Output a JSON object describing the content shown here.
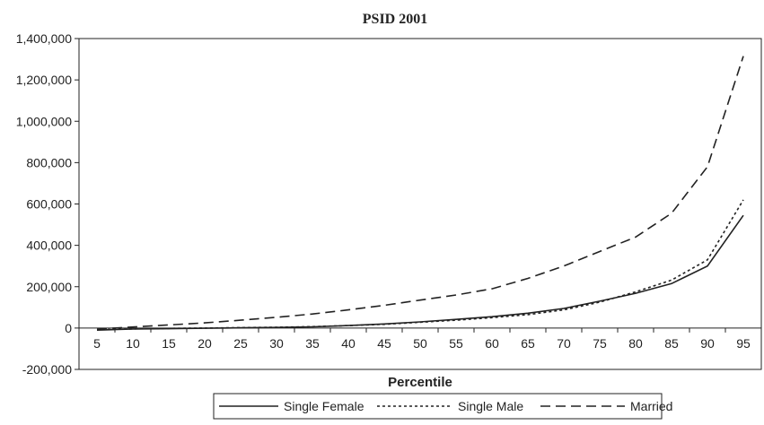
{
  "chart_data": {
    "type": "line",
    "title": "PSID 2001",
    "xlabel": "Percentile",
    "ylabel": "",
    "x": [
      5,
      10,
      15,
      20,
      25,
      30,
      35,
      40,
      45,
      50,
      55,
      60,
      65,
      70,
      75,
      80,
      85,
      90,
      95
    ],
    "ylim": [
      -200000,
      1400000
    ],
    "yticks": [
      {
        "value": -200000,
        "label": "-200,000"
      },
      {
        "value": 0,
        "label": "0"
      },
      {
        "value": 200000,
        "label": "200,000"
      },
      {
        "value": 400000,
        "label": "400,000"
      },
      {
        "value": 600000,
        "label": "600,000"
      },
      {
        "value": 800000,
        "label": "800,000"
      },
      {
        "value": 1000000,
        "label": "1,000,000"
      },
      {
        "value": 1200000,
        "label": "1,200,000"
      },
      {
        "value": 1400000,
        "label": "1,400,000"
      }
    ],
    "xticks": [
      "5",
      "10",
      "15",
      "20",
      "25",
      "30",
      "35",
      "40",
      "45",
      "50",
      "55",
      "60",
      "65",
      "70",
      "75",
      "80",
      "85",
      "90",
      "95"
    ],
    "grid": false,
    "legend_position": "bottom",
    "series": [
      {
        "name": "Single Female",
        "style": "solid",
        "color": "#222222",
        "values": [
          -10000,
          -5000,
          -3000,
          -1000,
          1000,
          3000,
          6000,
          12000,
          20000,
          30000,
          42000,
          55000,
          72000,
          95000,
          130000,
          168000,
          215000,
          300000,
          545000
        ]
      },
      {
        "name": "Single Male",
        "style": "dotted",
        "color": "#222222",
        "values": [
          -8000,
          -4000,
          -2000,
          0,
          2000,
          4000,
          7000,
          12000,
          18000,
          28000,
          38000,
          50000,
          65000,
          88000,
          125000,
          175000,
          232000,
          330000,
          620000
        ]
      },
      {
        "name": "Married",
        "style": "dashed",
        "color": "#222222",
        "values": [
          -5000,
          5000,
          15000,
          25000,
          38000,
          52000,
          68000,
          88000,
          110000,
          135000,
          160000,
          190000,
          240000,
          300000,
          370000,
          440000,
          555000,
          780000,
          1315000
        ]
      }
    ]
  }
}
